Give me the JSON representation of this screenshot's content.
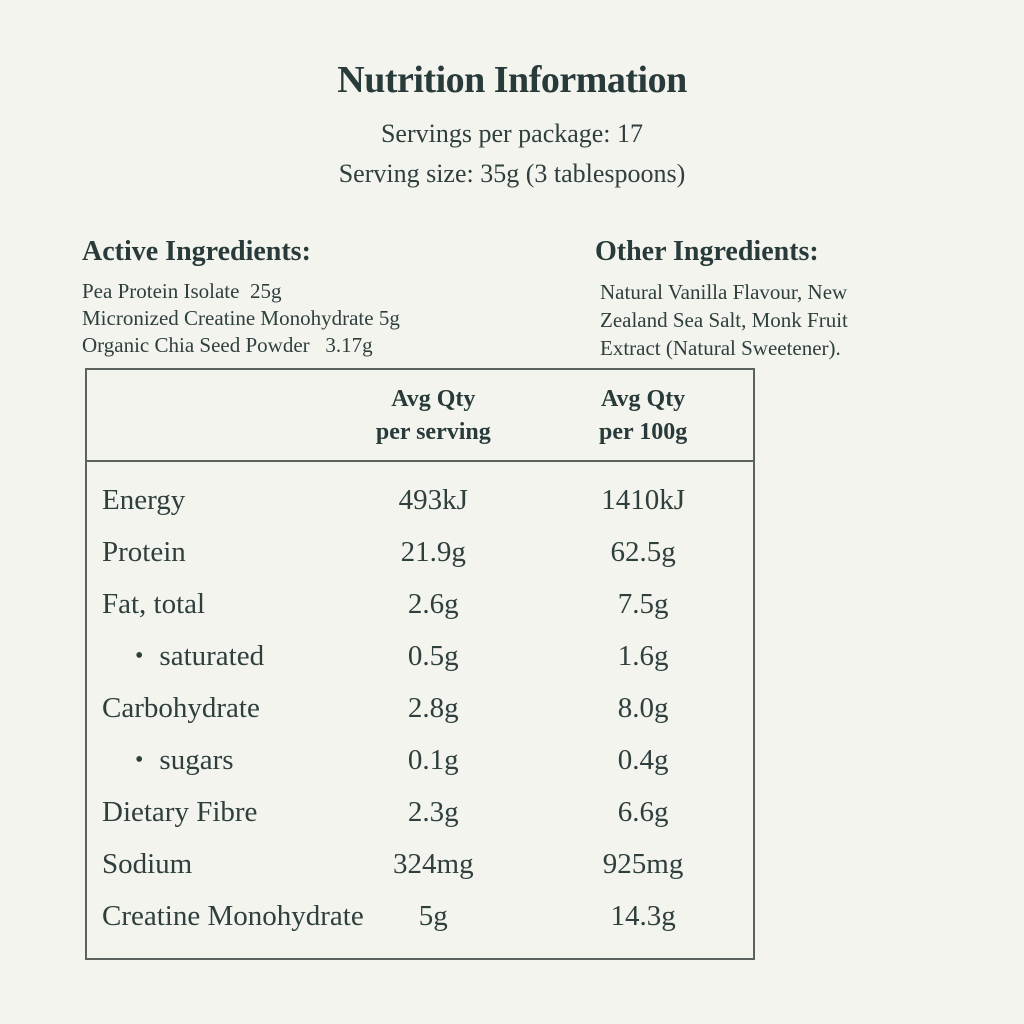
{
  "page": {
    "background_color": "#f4f4ee",
    "text_color": "#2e3f3d",
    "border_color": "#59625f"
  },
  "header": {
    "title": "Nutrition Information",
    "servings_line": "Servings per package: 17",
    "serving_size_line": "Serving size: 35g (3 tablespoons)"
  },
  "active_ingredients": {
    "heading": "Active Ingredients:",
    "items": [
      "Pea Protein Isolate  25g",
      "Micronized Creatine Monohydrate 5g",
      "Organic Chia Seed Powder   3.17g"
    ]
  },
  "other_ingredients": {
    "heading": "Other Ingredients:",
    "text": "Natural Vanilla Flavour, New Zealand Sea Salt, Monk Fruit Extract (Natural Sweetener)."
  },
  "table": {
    "bullet": "•",
    "columns": {
      "serving": {
        "line1": "Avg Qty",
        "line2": "per serving"
      },
      "per100g": {
        "line1": "Avg Qty",
        "line2": "per 100g"
      }
    },
    "rows": [
      {
        "label": "Energy",
        "sub": false,
        "serving": "493kJ",
        "per100g": "1410kJ"
      },
      {
        "label": "Protein",
        "sub": false,
        "serving": "21.9g",
        "per100g": "62.5g"
      },
      {
        "label": "Fat, total",
        "sub": false,
        "serving": "2.6g",
        "per100g": "7.5g"
      },
      {
        "label": "saturated",
        "sub": true,
        "serving": "0.5g",
        "per100g": "1.6g"
      },
      {
        "label": "Carbohydrate",
        "sub": false,
        "serving": "2.8g",
        "per100g": "8.0g"
      },
      {
        "label": "sugars",
        "sub": true,
        "serving": "0.1g",
        "per100g": "0.4g"
      },
      {
        "label": "Dietary Fibre",
        "sub": false,
        "serving": "2.3g",
        "per100g": "6.6g"
      },
      {
        "label": "Sodium",
        "sub": false,
        "serving": "324mg",
        "per100g": "925mg"
      },
      {
        "label": "Creatine Monohydrate",
        "sub": false,
        "serving": "5g",
        "per100g": "14.3g"
      }
    ]
  }
}
